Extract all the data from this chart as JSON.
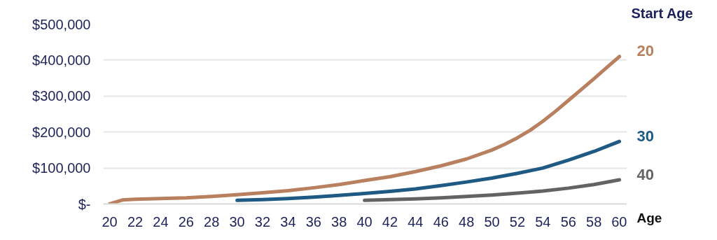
{
  "chart_data": {
    "type": "line",
    "legend_title": "Start Age",
    "xlabel": "Age",
    "xlim": [
      19.5,
      60.6
    ],
    "ylim": [
      0,
      500000
    ],
    "xticks": [
      20,
      22,
      24,
      26,
      28,
      30,
      32,
      34,
      36,
      38,
      40,
      42,
      44,
      46,
      48,
      50,
      52,
      54,
      56,
      58,
      60
    ],
    "yticks": [
      {
        "value": 0,
        "label": "$-"
      },
      {
        "value": 100000,
        "label": "$100,000"
      },
      {
        "value": 200000,
        "label": "$200,000"
      },
      {
        "value": 300000,
        "label": "$300,000"
      },
      {
        "value": 400000,
        "label": "$400,000"
      },
      {
        "value": 500000,
        "label": "$500,000"
      }
    ],
    "grid": "y",
    "marker": "none",
    "line_style": "solid",
    "series": [
      {
        "name": "20",
        "color": "#b9805f",
        "x": [
          20,
          21,
          22,
          24,
          26,
          28,
          30,
          32,
          34,
          36,
          38,
          40,
          42,
          44,
          46,
          48,
          50,
          51,
          52,
          53,
          54,
          55,
          56,
          57,
          58,
          59,
          60
        ],
        "values": [
          0,
          11000,
          13000,
          15000,
          17000,
          21000,
          26000,
          31000,
          37000,
          45000,
          54000,
          65000,
          76000,
          90000,
          106000,
          125000,
          150000,
          166000,
          184000,
          205000,
          230000,
          258000,
          288000,
          318000,
          348000,
          379000,
          410000
        ]
      },
      {
        "name": "30",
        "color": "#1f5a84",
        "x": [
          30,
          32,
          34,
          36,
          38,
          40,
          42,
          44,
          46,
          48,
          50,
          52,
          54,
          56,
          58,
          60
        ],
        "values": [
          10000,
          12000,
          15000,
          19000,
          24000,
          29000,
          35000,
          42000,
          51000,
          61000,
          72000,
          85000,
          100000,
          122000,
          146000,
          174000
        ]
      },
      {
        "name": "40",
        "color": "#636363",
        "x": [
          40,
          42,
          44,
          46,
          48,
          50,
          52,
          54,
          56,
          58,
          60
        ],
        "values": [
          10000,
          12000,
          14000,
          17000,
          21000,
          25000,
          30000,
          36000,
          44000,
          54000,
          67000
        ]
      }
    ]
  }
}
